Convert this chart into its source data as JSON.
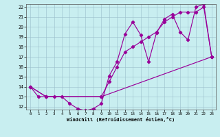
{
  "xlabel": "Windchill (Refroidissement éolien,°C)",
  "background_color": "#c8eef0",
  "line_color": "#990099",
  "xlim": [
    -0.5,
    23.5
  ],
  "ylim": [
    11.7,
    22.3
  ],
  "xticks": [
    0,
    1,
    2,
    3,
    4,
    5,
    6,
    7,
    8,
    9,
    10,
    11,
    12,
    13,
    14,
    15,
    16,
    17,
    18,
    19,
    20,
    21,
    22,
    23
  ],
  "yticks": [
    12,
    13,
    14,
    15,
    16,
    17,
    18,
    19,
    20,
    21,
    22
  ],
  "series1_x": [
    0,
    1,
    2,
    3,
    4,
    5,
    6,
    7,
    8,
    9,
    10,
    11,
    12,
    13,
    14,
    15,
    16,
    17,
    18,
    19,
    20,
    21,
    22,
    23
  ],
  "series1_y": [
    14,
    13,
    13,
    13,
    13,
    12.3,
    11.8,
    11.6,
    11.8,
    12.3,
    15.1,
    16.5,
    19.3,
    20.5,
    19.2,
    16.5,
    19.4,
    20.8,
    21.3,
    19.5,
    18.7,
    22.0,
    22.3,
    17.0
  ],
  "series2_x": [
    0,
    2,
    9,
    23
  ],
  "series2_y": [
    14,
    13,
    13,
    17
  ],
  "series3_x": [
    0,
    2,
    9,
    10,
    11,
    12,
    13,
    14,
    15,
    16,
    17,
    18,
    19,
    20,
    21,
    22,
    23
  ],
  "series3_y": [
    14,
    13,
    13,
    14.5,
    16.0,
    17.5,
    18.0,
    18.5,
    19.0,
    19.5,
    20.5,
    21.0,
    21.5,
    21.5,
    21.5,
    22.0,
    17.0
  ]
}
